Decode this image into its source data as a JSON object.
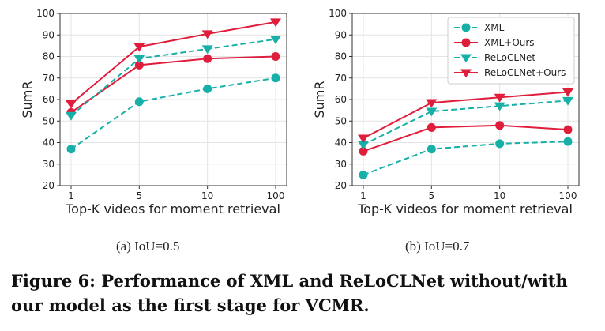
{
  "chart_data": [
    {
      "type": "line",
      "subtitle": "(a)  IoU=0.5",
      "xlabel": "Top-K videos for moment retrieval",
      "ylabel": "SumR",
      "categories": [
        "1",
        "5",
        "10",
        "100"
      ],
      "ylim": [
        20,
        100
      ],
      "yticks": [
        20,
        30,
        40,
        50,
        60,
        70,
        80,
        90,
        100
      ],
      "grid": true,
      "series": [
        {
          "name": "XML",
          "values": [
            37,
            59,
            65,
            70
          ],
          "color": "#17b0a8",
          "dash": true,
          "marker": "circle"
        },
        {
          "name": "XML+Ours",
          "values": [
            54,
            76,
            79,
            80
          ],
          "color": "#e01e3c",
          "dash": false,
          "marker": "circle"
        },
        {
          "name": "ReLoCLNet",
          "values": [
            52.5,
            79,
            83.5,
            88
          ],
          "color": "#17b0a8",
          "dash": true,
          "marker": "triangle"
        },
        {
          "name": "ReLoCLNet+Ours",
          "values": [
            58,
            84.5,
            90.5,
            96
          ],
          "color": "#e01e3c",
          "dash": false,
          "marker": "triangle"
        }
      ]
    },
    {
      "type": "line",
      "subtitle": "(b)  IoU=0.7",
      "xlabel": "Top-K videos for moment retrieval",
      "ylabel": "SumR",
      "categories": [
        "1",
        "5",
        "10",
        "100"
      ],
      "ylim": [
        20,
        100
      ],
      "yticks": [
        20,
        30,
        40,
        50,
        60,
        70,
        80,
        90,
        100
      ],
      "grid": true,
      "legend": "top-right",
      "series": [
        {
          "name": "XML",
          "values": [
            25,
            37,
            39.5,
            40.5
          ],
          "color": "#17b0a8",
          "dash": true,
          "marker": "circle"
        },
        {
          "name": "XML+Ours",
          "values": [
            36,
            47,
            48,
            46
          ],
          "color": "#e01e3c",
          "dash": false,
          "marker": "circle"
        },
        {
          "name": "ReLoCLNet",
          "values": [
            39,
            54.5,
            57,
            59.5
          ],
          "color": "#17b0a8",
          "dash": true,
          "marker": "triangle"
        },
        {
          "name": "ReLoCLNet+Ours",
          "values": [
            42,
            58.5,
            61,
            63.5
          ],
          "color": "#e01e3c",
          "dash": false,
          "marker": "triangle"
        }
      ]
    }
  ],
  "caption": "Figure 6: Performance of XML and ReLoCLNet without/with our model as the first stage for VCMR."
}
